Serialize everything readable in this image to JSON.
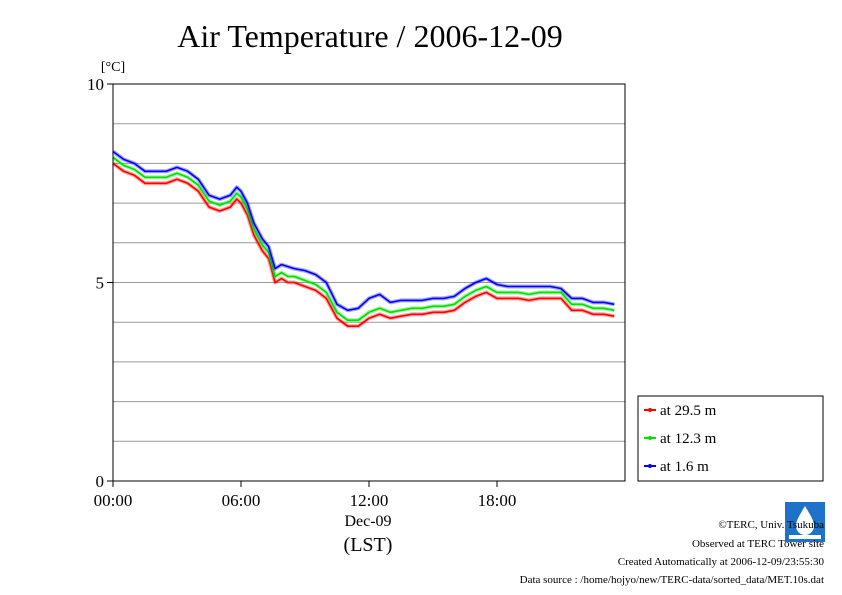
{
  "chart_data": {
    "type": "line",
    "title": "Air Temperature / 2006-12-09",
    "ylabel": "[°C]",
    "xlabel": "(LST)",
    "date_label": "Dec-09",
    "ylim": [
      0,
      10
    ],
    "xlim": [
      0,
      24
    ],
    "yticks": [
      0,
      5,
      10
    ],
    "ytick_labels": [
      "0",
      "5",
      "10"
    ],
    "xticks": [
      0,
      6,
      12,
      18
    ],
    "xtick_labels": [
      "00:00",
      "06:00",
      "12:00",
      "18:00"
    ],
    "grid": true,
    "legend_position": "right-bottom",
    "x": [
      0,
      0.5,
      1,
      1.5,
      2,
      2.5,
      3,
      3.5,
      4,
      4.5,
      5,
      5.5,
      5.8,
      6,
      6.3,
      6.6,
      7,
      7.3,
      7.6,
      7.9,
      8.2,
      8.5,
      9,
      9.5,
      10,
      10.5,
      11,
      11.5,
      12,
      12.5,
      13,
      13.5,
      14,
      14.5,
      15,
      15.5,
      16,
      16.5,
      17,
      17.5,
      18,
      18.5,
      19,
      19.5,
      20,
      20.5,
      21,
      21.5,
      22,
      22.5,
      23,
      23.5
    ],
    "series": [
      {
        "name": "at 29.5 m",
        "color": "#ff0000",
        "values": [
          8.0,
          7.8,
          7.7,
          7.5,
          7.5,
          7.5,
          7.6,
          7.5,
          7.3,
          6.9,
          6.8,
          6.9,
          7.1,
          7.0,
          6.7,
          6.2,
          5.8,
          5.6,
          5.0,
          5.1,
          5.0,
          5.0,
          4.9,
          4.8,
          4.6,
          4.1,
          3.9,
          3.9,
          4.1,
          4.2,
          4.1,
          4.15,
          4.2,
          4.2,
          4.25,
          4.25,
          4.3,
          4.5,
          4.65,
          4.75,
          4.6,
          4.6,
          4.6,
          4.55,
          4.6,
          4.6,
          4.6,
          4.3,
          4.3,
          4.2,
          4.2,
          4.15
        ]
      },
      {
        "name": "at 12.3 m",
        "color": "#00e000",
        "values": [
          8.15,
          7.95,
          7.85,
          7.65,
          7.65,
          7.65,
          7.75,
          7.65,
          7.45,
          7.05,
          6.95,
          7.05,
          7.25,
          7.15,
          6.85,
          6.35,
          5.95,
          5.75,
          5.15,
          5.25,
          5.15,
          5.15,
          5.05,
          4.95,
          4.75,
          4.25,
          4.05,
          4.05,
          4.25,
          4.35,
          4.25,
          4.3,
          4.35,
          4.35,
          4.4,
          4.4,
          4.45,
          4.65,
          4.8,
          4.9,
          4.75,
          4.75,
          4.75,
          4.7,
          4.75,
          4.75,
          4.75,
          4.45,
          4.45,
          4.35,
          4.35,
          4.3
        ]
      },
      {
        "name": "at 1.6 m",
        "color": "#0000ff",
        "values": [
          8.3,
          8.1,
          8.0,
          7.8,
          7.8,
          7.8,
          7.9,
          7.8,
          7.6,
          7.2,
          7.1,
          7.2,
          7.4,
          7.3,
          7.0,
          6.5,
          6.1,
          5.9,
          5.35,
          5.45,
          5.4,
          5.35,
          5.3,
          5.2,
          5.0,
          4.45,
          4.3,
          4.35,
          4.6,
          4.7,
          4.5,
          4.55,
          4.55,
          4.55,
          4.6,
          4.6,
          4.65,
          4.85,
          5.0,
          5.1,
          4.95,
          4.9,
          4.9,
          4.9,
          4.9,
          4.9,
          4.85,
          4.6,
          4.6,
          4.5,
          4.5,
          4.45
        ]
      }
    ]
  },
  "credits": {
    "copyright": "©TERC, Univ. Tsukuba",
    "observed": "Observed at TERC Tower site",
    "created": "Created Automatically at 2006-12-09/23:55:30",
    "source": "Data source : /home/hojyo/new/TERC-data/sorted_data/MET.10s.dat"
  }
}
